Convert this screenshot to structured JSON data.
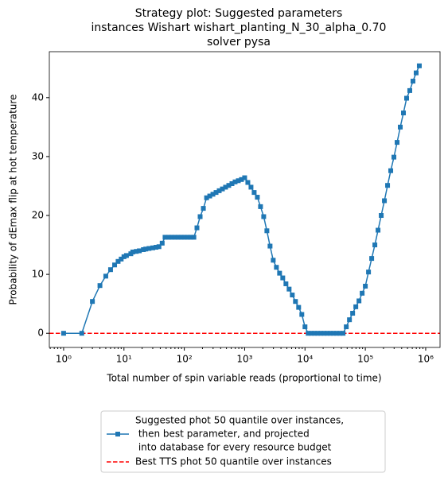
{
  "chart_data": {
    "type": "line",
    "title": [
      "Strategy plot: Suggested parameters",
      "instances Wishart wishart_planting_N_30_alpha_0.70",
      "solver pysa"
    ],
    "xlabel": "Total number of spin variable reads (proportional to time)",
    "ylabel": "Probability of dEmax flip at hot temperature",
    "xscale": "log",
    "xlim": [
      0.58,
      1730000
    ],
    "ylim": [
      -2.4,
      47.8
    ],
    "xticks": [
      {
        "value": 1,
        "label": "10⁰"
      },
      {
        "value": 10,
        "label": "10¹"
      },
      {
        "value": 100,
        "label": "10²"
      },
      {
        "value": 1000,
        "label": "10³"
      },
      {
        "value": 10000,
        "label": "10⁴"
      },
      {
        "value": 100000,
        "label": "10⁵"
      },
      {
        "value": 1000000,
        "label": "10⁶"
      }
    ],
    "yticks": [
      0,
      10,
      20,
      30,
      40
    ],
    "series": [
      {
        "name": [
          "Suggested phot 50 quantile over instances,",
          " then best parameter, and projected",
          " into database for every resource budget"
        ],
        "color": "#1f77b4",
        "x": [
          1,
          2,
          3,
          4,
          5,
          6,
          7,
          8,
          9,
          10,
          11,
          13,
          14,
          16,
          18,
          21,
          23,
          26,
          30,
          34,
          38,
          43,
          48,
          55,
          62,
          70,
          79,
          89,
          100,
          113,
          127,
          144,
          162,
          183,
          207,
          234,
          264,
          298,
          336,
          379,
          428,
          483,
          546,
          616,
          695,
          785,
          886,
          1000,
          1129,
          1274,
          1438,
          1624,
          1833,
          2069,
          2336,
          2637,
          2976,
          3360,
          3793,
          4281,
          4833,
          5456,
          6158,
          6952,
          7848,
          8859,
          10000,
          11288,
          12743,
          14384,
          16238,
          18330,
          20691,
          23357,
          26367,
          29764,
          33598,
          37927,
          42813,
          48329,
          54556,
          61585,
          69519,
          78476,
          88587,
          100000,
          112884,
          127427,
          143845,
          162378,
          183298,
          206914,
          233572,
          263665,
          297635,
          335982,
          379269,
          428133,
          483293,
          545559,
          615848,
          695193,
          784760
        ],
        "values": [
          0,
          0,
          5.4,
          8.1,
          9.7,
          10.8,
          11.6,
          12.2,
          12.6,
          13.0,
          13.2,
          13.5,
          13.8,
          13.9,
          14.0,
          14.2,
          14.3,
          14.4,
          14.5,
          14.6,
          14.7,
          15.3,
          16.3,
          16.3,
          16.3,
          16.3,
          16.3,
          16.3,
          16.3,
          16.3,
          16.3,
          16.3,
          17.9,
          19.8,
          21.2,
          23.0,
          23.3,
          23.6,
          23.9,
          24.2,
          24.5,
          24.8,
          25.1,
          25.4,
          25.7,
          25.9,
          26.1,
          26.4,
          25.6,
          24.8,
          23.9,
          23.1,
          21.5,
          19.8,
          17.4,
          14.8,
          12.4,
          11.2,
          10.2,
          9.4,
          8.4,
          7.5,
          6.5,
          5.4,
          4.4,
          3.2,
          1.1,
          0,
          0,
          0,
          0,
          0,
          0,
          0,
          0,
          0,
          0,
          0,
          0,
          1.1,
          2.3,
          3.4,
          4.5,
          5.5,
          6.8,
          8.0,
          10.4,
          12.7,
          15.0,
          17.5,
          20.0,
          22.5,
          25.1,
          27.6,
          29.9,
          32.4,
          35.0,
          37.4,
          39.9,
          41.2,
          42.8,
          44.2,
          45.4
        ]
      }
    ],
    "reference_line": {
      "name": "Best TTS phot 50 quantile over instances",
      "color": "#ff0000",
      "value": 0,
      "style": "dashed"
    }
  }
}
